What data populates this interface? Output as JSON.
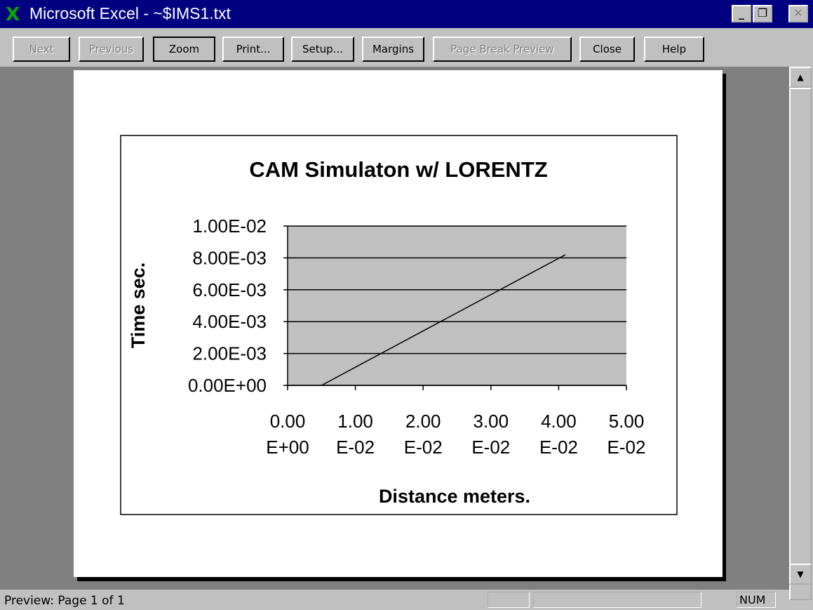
{
  "window": {
    "title": "Microsoft Excel - ~$IMS1.txt"
  },
  "toolbar": {
    "buttons": [
      {
        "label": "Next",
        "enabled": false
      },
      {
        "label": "Previous",
        "enabled": false
      },
      {
        "label": "Zoom",
        "enabled": true
      },
      {
        "label": "Print...",
        "enabled": true
      },
      {
        "label": "Setup...",
        "enabled": true
      },
      {
        "label": "Margins",
        "enabled": true
      },
      {
        "label": "Page Break Preview",
        "enabled": false
      },
      {
        "label": "Close",
        "enabled": true
      },
      {
        "label": "Help",
        "enabled": true
      }
    ]
  },
  "status": {
    "text": "Preview: Page 1 of 1",
    "indicator": "NUM"
  },
  "chart_data": {
    "type": "line",
    "title": "CAM Simulaton w/ LORENTZ",
    "x_label": "Distance meters.",
    "y_label": "Time sec.",
    "x": [
      0.005,
      0.041
    ],
    "series": [
      {
        "color": "#000000",
        "values": [
          0,
          0.0082
        ]
      }
    ],
    "xlim": [
      0,
      0.05
    ],
    "xticks": [
      {
        "value": 0,
        "label": "0.00E+00"
      },
      {
        "value": 0.01,
        "label": "1.00E-02"
      },
      {
        "value": 0.02,
        "label": "2.00E-02"
      },
      {
        "value": 0.03,
        "label": "3.00E-02"
      },
      {
        "value": 0.04,
        "label": "4.00E-02"
      },
      {
        "value": 0.05,
        "label": "5.00E-02"
      }
    ],
    "ylim": [
      0,
      0.01
    ],
    "yticks": [
      {
        "value": 0,
        "label": "0.00E+00"
      },
      {
        "value": 0.002,
        "label": "2.00E-03"
      },
      {
        "value": 0.004,
        "label": "4.00E-03"
      },
      {
        "value": 0.006,
        "label": "6.00E-03"
      },
      {
        "value": 0.008,
        "label": "8.00E-03"
      },
      {
        "value": 0.01,
        "label": "1.00E-02"
      }
    ],
    "grid": true,
    "plot_background": "#c0c0c0"
  }
}
